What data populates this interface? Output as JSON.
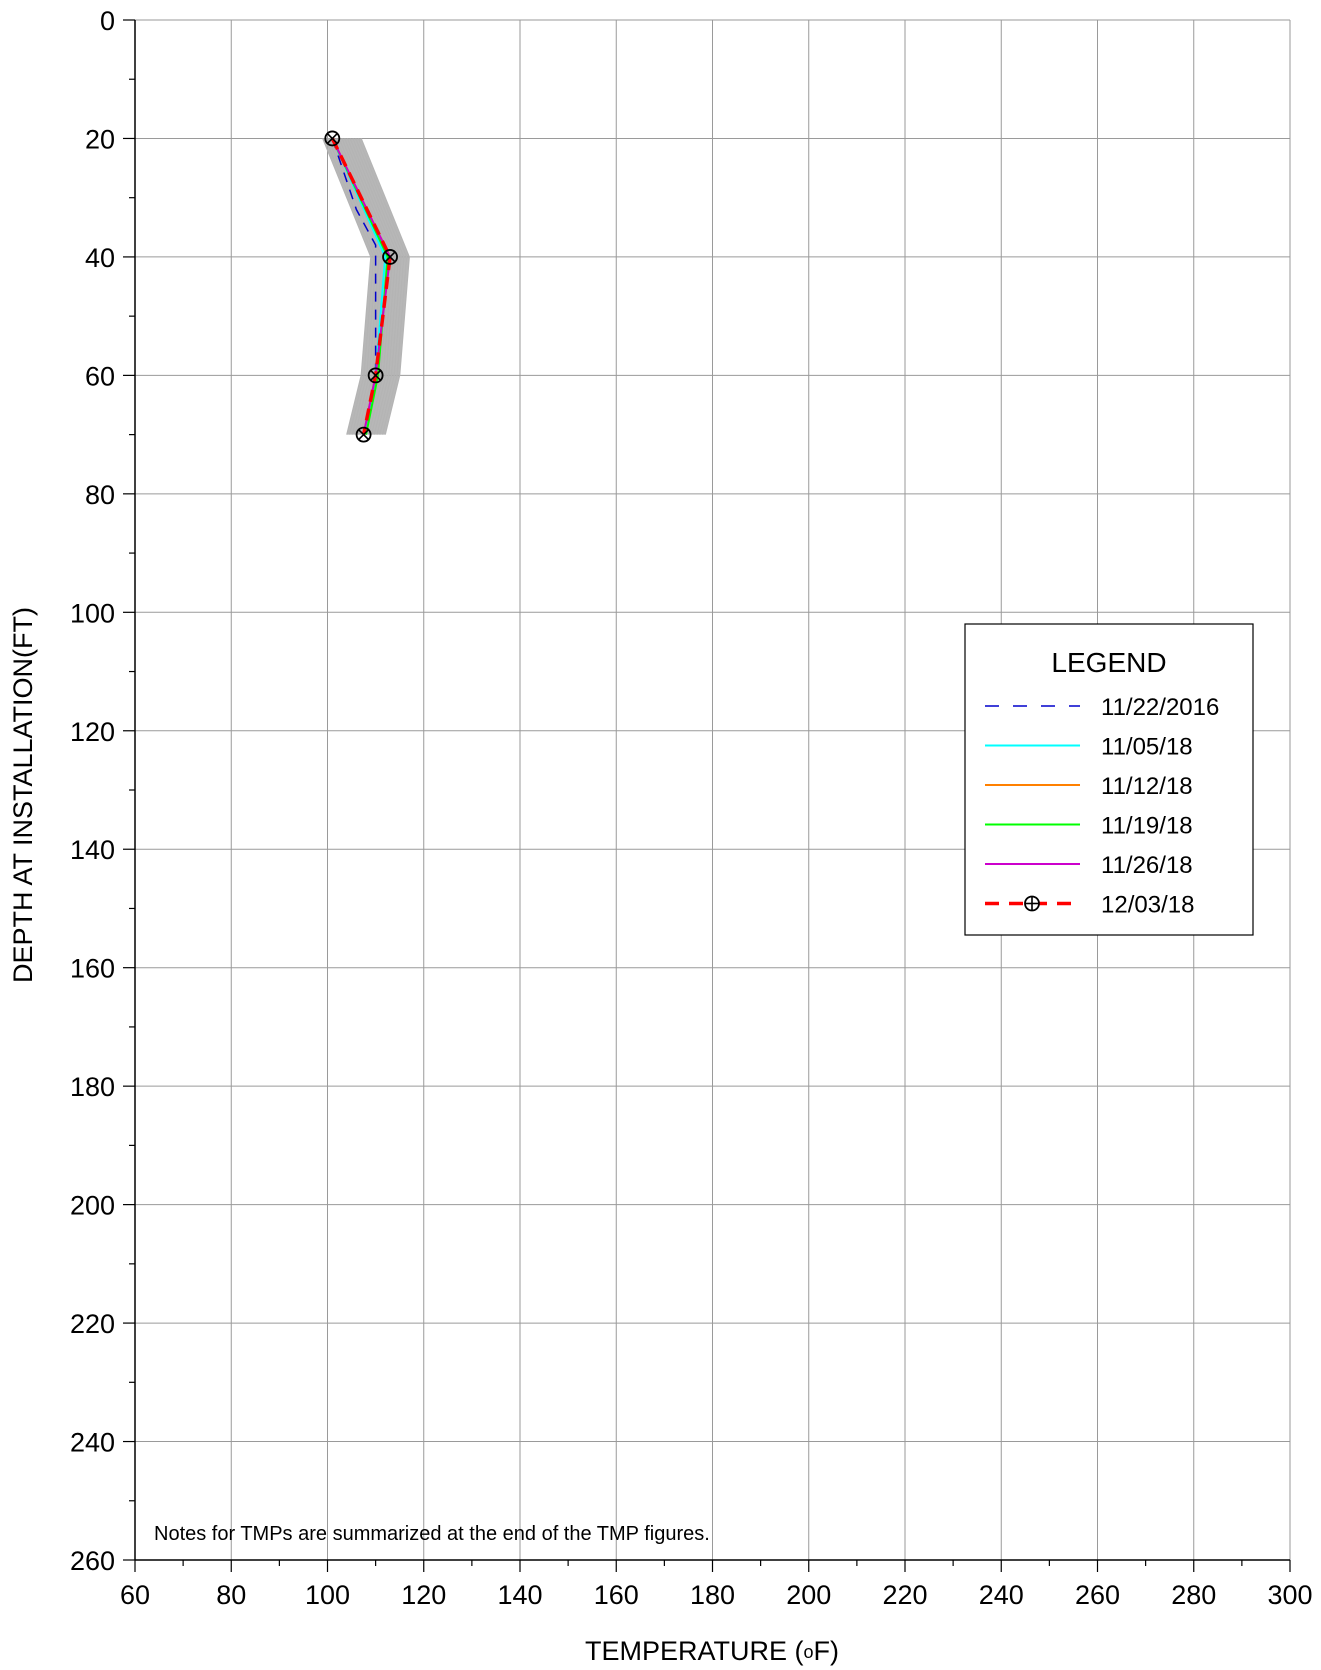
{
  "chart_data": {
    "type": "line",
    "xlabel_main": "TEMPERATURE (",
    "xlabel_sup": "o",
    "xlabel_end": "F)",
    "ylabel": "DEPTH AT INSTALLATION(FT)",
    "xlim": [
      60,
      300
    ],
    "ylim": [
      0,
      260
    ],
    "y_inverted": true,
    "x_ticks": [
      60,
      80,
      100,
      120,
      140,
      160,
      180,
      200,
      220,
      240,
      260,
      280,
      300
    ],
    "y_ticks": [
      0,
      20,
      40,
      60,
      80,
      100,
      120,
      140,
      160,
      180,
      200,
      220,
      240,
      260
    ],
    "grid": true,
    "note": "Notes for TMPs are summarized at the end of the TMP figures.",
    "legend": {
      "title": "LEGEND",
      "placement": "right-middle"
    },
    "depths": [
      20,
      40,
      60,
      70
    ],
    "background_history": {
      "color": "#aaaaaa",
      "temperature_range_min": [
        99,
        109,
        107,
        104
      ],
      "temperature_range_max": [
        107,
        117,
        115,
        112
      ]
    },
    "series": [
      {
        "name": "11/22/2016",
        "color": "#0000cc",
        "style": "dashed",
        "points": [
          [
            101,
            20
          ],
          [
            106,
            32
          ],
          [
            110,
            38
          ],
          [
            110,
            45
          ],
          [
            110,
            60
          ],
          [
            108,
            70
          ]
        ]
      },
      {
        "name": "11/05/18",
        "color": "#00ffff",
        "style": "solid",
        "points": [
          [
            101,
            20
          ],
          [
            112,
            40
          ],
          [
            110,
            60
          ],
          [
            108,
            70
          ]
        ]
      },
      {
        "name": "11/12/18",
        "color": "#ff8000",
        "style": "solid",
        "points": [
          [
            101,
            20
          ],
          [
            113,
            40
          ],
          [
            110,
            60
          ],
          [
            107.5,
            70
          ]
        ]
      },
      {
        "name": "11/19/18",
        "color": "#00ff00",
        "style": "solid",
        "points": [
          [
            101,
            20
          ],
          [
            112.5,
            40
          ],
          [
            110.5,
            60
          ],
          [
            108,
            70
          ]
        ]
      },
      {
        "name": "11/26/18",
        "color": "#cc00cc",
        "style": "solid",
        "points": [
          [
            101,
            20
          ],
          [
            113,
            40
          ],
          [
            110,
            60
          ],
          [
            107.5,
            70
          ]
        ]
      },
      {
        "name": "12/03/18",
        "color": "#ff0000",
        "style": "dashed-marker",
        "points": [
          [
            101,
            20
          ],
          [
            113,
            40
          ],
          [
            110,
            60
          ],
          [
            107.5,
            70
          ]
        ]
      }
    ]
  }
}
